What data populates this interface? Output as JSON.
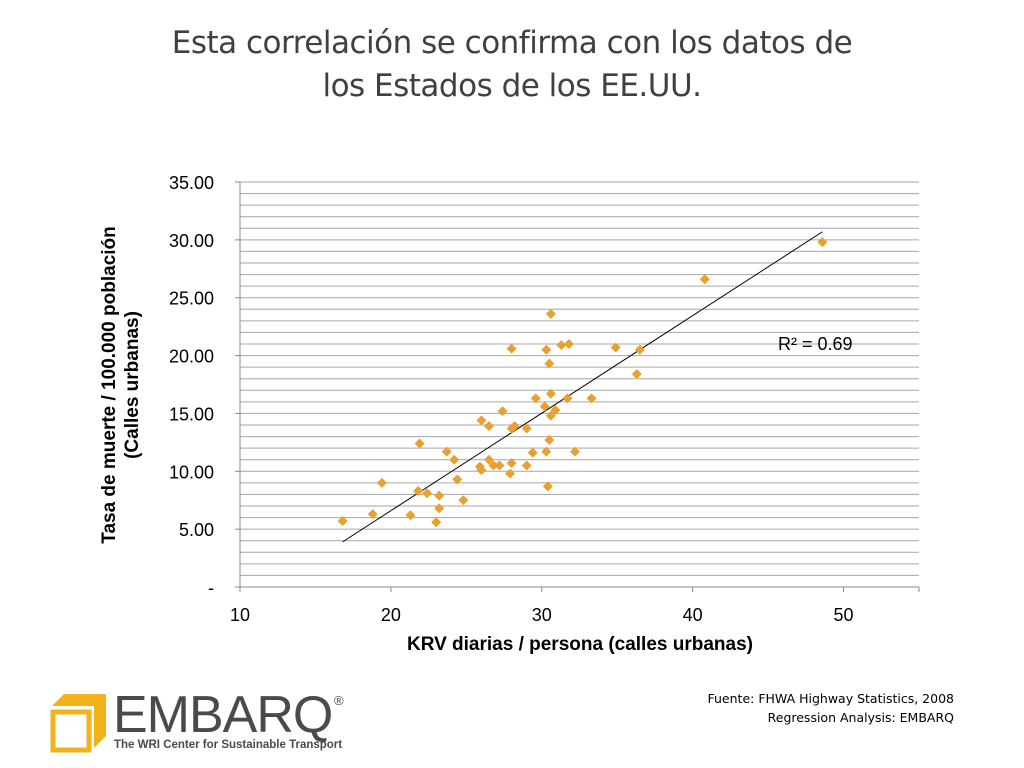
{
  "title": {
    "line1": "Esta correlación se confirma con los datos de",
    "line2": "los Estados de los EE.UU."
  },
  "source": {
    "line1": "Fuente: FHWA Highway Statistics, 2008",
    "line2": "Regression Analysis: EMBARQ"
  },
  "logo": {
    "word": "EMBARQ",
    "registered": "®",
    "tagline": "The WRI Center for Sustainable Transport",
    "color": "#f2b21b"
  },
  "colors": {
    "marker": "#e8a02f",
    "gridline": "#a6a6a6",
    "trendline": "#000000"
  },
  "chart_data": {
    "type": "scatter",
    "xlabel": "KRV diarias / persona (calles urbanas)",
    "ylabel_line1": "Tasa de muerte / 100.000 población",
    "ylabel_line2": "(Calles urbanas)",
    "xlim": [
      10,
      55
    ],
    "ylim": [
      0,
      35
    ],
    "x_ticks": [
      10,
      20,
      30,
      40,
      50
    ],
    "x_tick_labels": [
      "10",
      "20",
      "30",
      "40",
      "50"
    ],
    "y_ticks": [
      0,
      5,
      10,
      15,
      20,
      25,
      30,
      35
    ],
    "y_tick_labels": [
      "-",
      "5.00",
      "10.00",
      "15.00",
      "20.00",
      "25.00",
      "30.00",
      "35.00"
    ],
    "grid": "horizontal minor every 1.0",
    "annotation": "R² = 0.69",
    "trendline": {
      "x": [
        16.8,
        48.6
      ],
      "y": [
        3.9,
        30.7
      ]
    },
    "points": [
      [
        16.8,
        5.7
      ],
      [
        18.8,
        6.3
      ],
      [
        19.4,
        9.0
      ],
      [
        21.3,
        6.2
      ],
      [
        21.8,
        8.3
      ],
      [
        21.9,
        12.4
      ],
      [
        22.4,
        8.1
      ],
      [
        23.0,
        5.6
      ],
      [
        23.2,
        6.8
      ],
      [
        23.2,
        7.9
      ],
      [
        23.7,
        11.7
      ],
      [
        24.2,
        11.0
      ],
      [
        24.4,
        9.3
      ],
      [
        24.8,
        7.5
      ],
      [
        25.9,
        10.4
      ],
      [
        26.0,
        14.4
      ],
      [
        26.0,
        10.1
      ],
      [
        26.5,
        13.9
      ],
      [
        26.5,
        11.0
      ],
      [
        26.8,
        10.5
      ],
      [
        27.2,
        10.5
      ],
      [
        27.4,
        15.2
      ],
      [
        27.9,
        9.8
      ],
      [
        28.0,
        10.7
      ],
      [
        28.0,
        13.7
      ],
      [
        28.2,
        13.9
      ],
      [
        28.0,
        20.6
      ],
      [
        29.0,
        10.5
      ],
      [
        29.0,
        13.7
      ],
      [
        29.4,
        11.6
      ],
      [
        29.6,
        16.3
      ],
      [
        30.2,
        15.6
      ],
      [
        30.3,
        11.7
      ],
      [
        30.3,
        20.5
      ],
      [
        30.4,
        8.7
      ],
      [
        30.5,
        12.7
      ],
      [
        30.5,
        19.3
      ],
      [
        30.6,
        14.8
      ],
      [
        30.6,
        16.7
      ],
      [
        30.6,
        23.6
      ],
      [
        30.9,
        15.3
      ],
      [
        31.3,
        20.9
      ],
      [
        31.7,
        16.3
      ],
      [
        31.8,
        21.0
      ],
      [
        32.2,
        11.7
      ],
      [
        33.3,
        16.3
      ],
      [
        34.9,
        20.7
      ],
      [
        36.3,
        18.4
      ],
      [
        36.5,
        20.5
      ],
      [
        40.8,
        26.6
      ],
      [
        48.6,
        29.8
      ]
    ]
  }
}
